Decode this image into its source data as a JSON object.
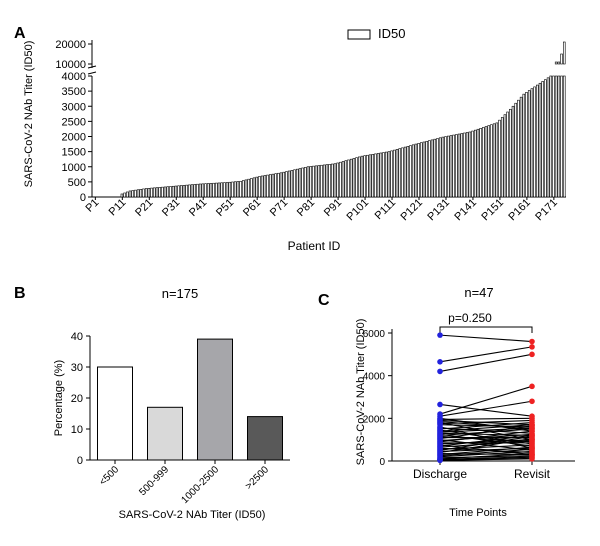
{
  "colors": {
    "bar_outline": "#000000",
    "bar_fill_a": "#ffffff",
    "b_fill": [
      "#ffffff",
      "#d9d9d9",
      "#a6a6aa",
      "#595959"
    ],
    "discharge_point": "#2222dd",
    "revisit_point": "#ee2222",
    "line": "#000000"
  },
  "chart_data": [
    {
      "panel": "A",
      "type": "bar",
      "legend_label": "ID50",
      "ylabel": "SARS-CoV-2 NAb Titer (ID50)",
      "xlabel": "Patient ID",
      "n": 175,
      "y_ticks_lower": [
        0,
        500,
        1000,
        1500,
        2000,
        2500,
        3000,
        3500,
        4000
      ],
      "y_ticks_upper": [
        10000,
        20000
      ],
      "y_tick_labels_lower": [
        "0",
        "500",
        "1000",
        "1500",
        "2000",
        "2500",
        "3000",
        "3500",
        "4000"
      ],
      "y_tick_labels_upper": [
        "10000",
        "20000"
      ],
      "ylim_lower": [
        0,
        4000
      ],
      "ylim_upper": [
        4000,
        22000
      ],
      "x_tick_labels": [
        "P1",
        "P11",
        "P21",
        "P31",
        "P41",
        "P51",
        "P61",
        "P71",
        "P81",
        "P91",
        "P101",
        "P111",
        "P121",
        "P131",
        "P141",
        "P151",
        "P161",
        "P171"
      ],
      "profile_anchors": [
        [
          1,
          0
        ],
        [
          10,
          0
        ],
        [
          11,
          100
        ],
        [
          14,
          200
        ],
        [
          20,
          280
        ],
        [
          40,
          430
        ],
        [
          50,
          480
        ],
        [
          55,
          520
        ],
        [
          62,
          680
        ],
        [
          70,
          800
        ],
        [
          80,
          1000
        ],
        [
          90,
          1100
        ],
        [
          100,
          1350
        ],
        [
          110,
          1500
        ],
        [
          120,
          1750
        ],
        [
          130,
          1980
        ],
        [
          140,
          2150
        ],
        [
          150,
          2450
        ],
        [
          155,
          2900
        ],
        [
          160,
          3400
        ],
        [
          165,
          3700
        ],
        [
          170,
          4000
        ],
        [
          171,
          4000
        ],
        [
          172,
          6000
        ],
        [
          173,
          8000
        ],
        [
          174,
          15000
        ],
        [
          175,
          21000
        ]
      ]
    },
    {
      "panel": "B",
      "type": "bar",
      "title": "n=175",
      "ylabel": "Percentage (%)",
      "xlabel": "SARS-CoV-2 NAb Titer (ID50)",
      "categories": [
        "<500",
        "500-999",
        "1000-2500",
        ">2500"
      ],
      "values": [
        30,
        17,
        39,
        14
      ],
      "ylim": [
        0,
        40
      ],
      "y_ticks": [
        0,
        10,
        20,
        30,
        40
      ]
    },
    {
      "panel": "C",
      "type": "line",
      "title": "n=47",
      "annotation": "p=0.250",
      "ylabel": "SARS-CoV-2 NAb Titer (ID50)",
      "xlabel": "Time Points",
      "categories": [
        "Discharge",
        "Revisit"
      ],
      "ylim": [
        0,
        6000
      ],
      "y_ticks": [
        0,
        2000,
        4000,
        6000
      ],
      "pairs": [
        [
          5900,
          5600
        ],
        [
          4650,
          5350
        ],
        [
          4200,
          5000
        ],
        [
          2650,
          2100
        ],
        [
          2200,
          3500
        ],
        [
          2100,
          2800
        ],
        [
          2000,
          1400
        ],
        [
          1950,
          2000
        ],
        [
          1900,
          1700
        ],
        [
          1850,
          1500
        ],
        [
          1800,
          1000
        ],
        [
          1750,
          1900
        ],
        [
          1700,
          1600
        ],
        [
          1600,
          600
        ],
        [
          1550,
          1300
        ],
        [
          1500,
          1800
        ],
        [
          1450,
          800
        ],
        [
          1400,
          1700
        ],
        [
          1350,
          1550
        ],
        [
          1300,
          1200
        ],
        [
          1250,
          700
        ],
        [
          1200,
          1500
        ],
        [
          1150,
          900
        ],
        [
          1100,
          1100
        ],
        [
          1050,
          1650
        ],
        [
          1000,
          500
        ],
        [
          950,
          1250
        ],
        [
          900,
          1400
        ],
        [
          850,
          850
        ],
        [
          800,
          1000
        ],
        [
          750,
          300
        ],
        [
          700,
          1200
        ],
        [
          650,
          950
        ],
        [
          600,
          400
        ],
        [
          550,
          750
        ],
        [
          500,
          1150
        ],
        [
          450,
          600
        ],
        [
          400,
          1050
        ],
        [
          350,
          300
        ],
        [
          300,
          650
        ],
        [
          250,
          550
        ],
        [
          200,
          450
        ],
        [
          150,
          250
        ],
        [
          100,
          350
        ],
        [
          80,
          200
        ],
        [
          50,
          150
        ],
        [
          30,
          100
        ]
      ]
    }
  ],
  "panels": {
    "a_label": "A",
    "b_label": "B",
    "c_label": "C"
  }
}
